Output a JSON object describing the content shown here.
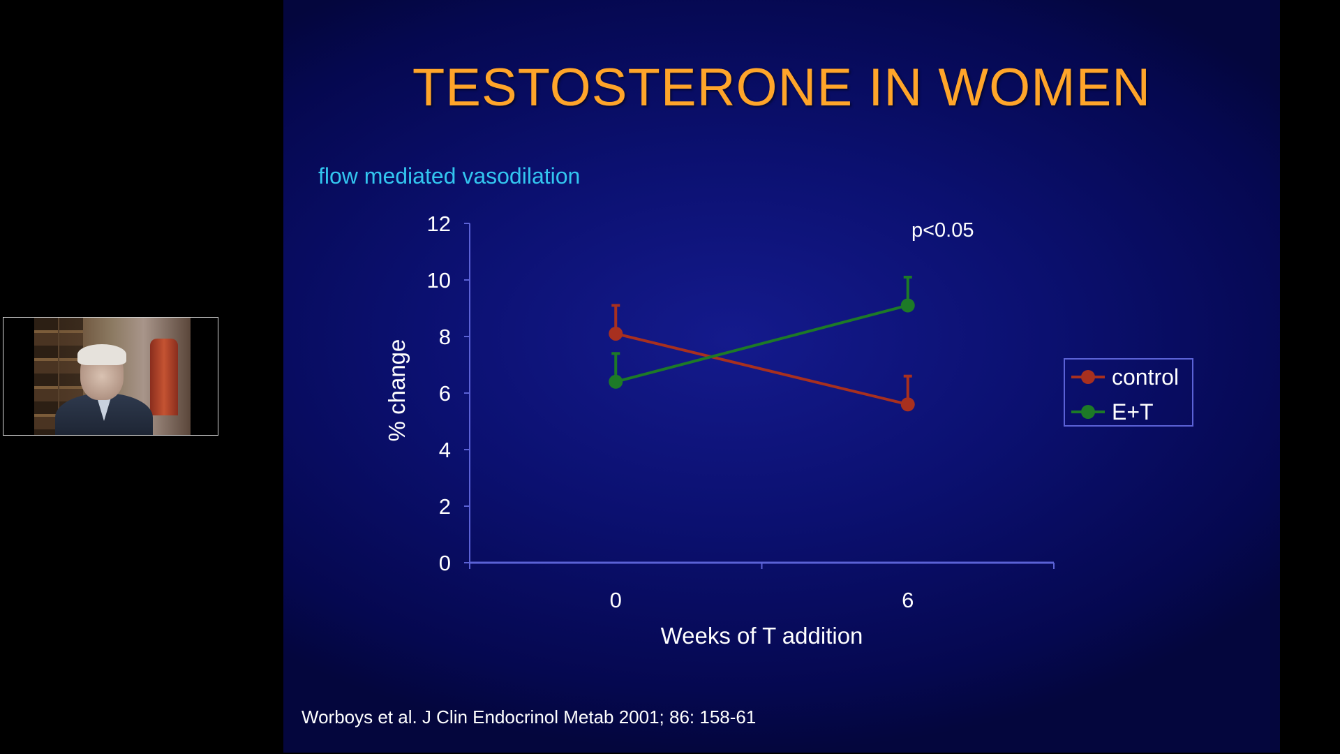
{
  "slide": {
    "title": "TESTOSTERONE IN WOMEN",
    "subtitle": "flow mediated vasodilation",
    "citation": "Worboys et al. J Clin  Endocrinol Metab 2001; 86: 158-61",
    "background_color": "#0b1070",
    "title_color": "#ffa52a",
    "subtitle_color": "#33c6f0"
  },
  "presenter": {
    "video_icon": "presenter-video-icon"
  },
  "chart_data": {
    "type": "line",
    "title": "",
    "xlabel": "Weeks of T addition",
    "ylabel": "% change",
    "x_categories": [
      "0",
      "6"
    ],
    "x_values": [
      0,
      6
    ],
    "xlim": [
      -3,
      9
    ],
    "ylim": [
      0,
      12
    ],
    "y_ticks": [
      "0",
      "2",
      "4",
      "6",
      "8",
      "10",
      "12"
    ],
    "annotation": "p<0.05",
    "legend_position": "right",
    "series": [
      {
        "name": "control",
        "color": "#a8301f",
        "values": [
          8.1,
          5.6
        ],
        "error_up": [
          1.0,
          1.0
        ]
      },
      {
        "name": "E+T",
        "color": "#1d7a27",
        "values": [
          6.4,
          9.1
        ],
        "error_up": [
          1.0,
          1.0
        ]
      }
    ]
  }
}
